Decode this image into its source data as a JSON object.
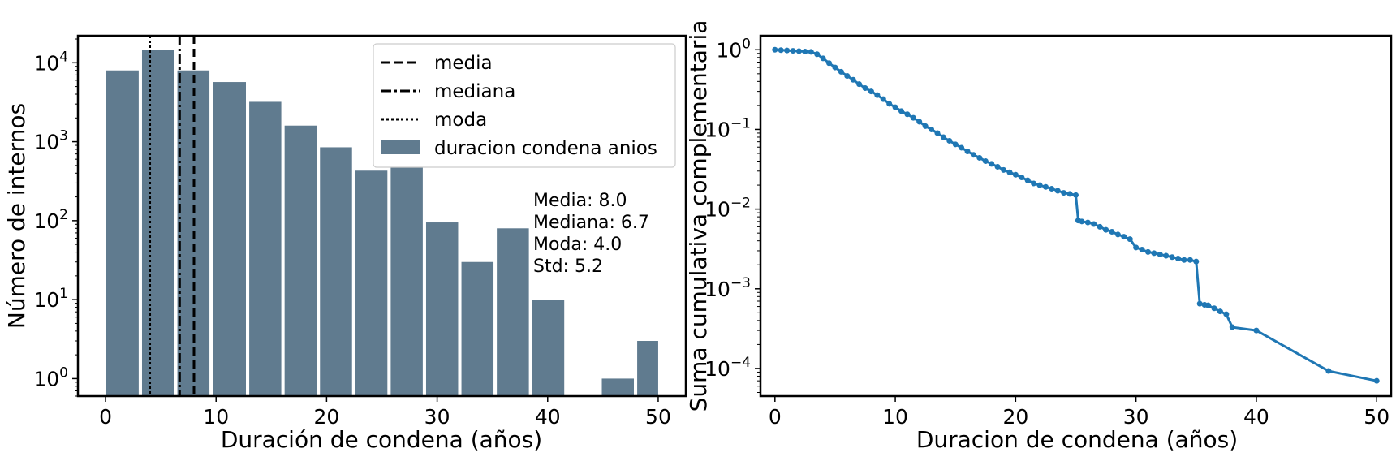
{
  "chart_data": [
    {
      "type": "bar",
      "scale_y": "log",
      "xlabel": "Duración de condena (años)",
      "ylabel": "Número de internos",
      "xlim": [
        -2.5,
        52.5
      ],
      "ylim": [
        0.6,
        22000
      ],
      "xticks": [
        0,
        10,
        20,
        30,
        40,
        50
      ],
      "yticks": [
        {
          "value": 1,
          "base": "10",
          "exp": "0"
        },
        {
          "value": 10,
          "base": "10",
          "exp": "1"
        },
        {
          "value": 100,
          "base": "10",
          "exp": "2"
        },
        {
          "value": 1000,
          "base": "10",
          "exp": "3"
        },
        {
          "value": 10000,
          "base": "10",
          "exp": "4"
        }
      ],
      "bar_color": "#607b8f",
      "bins": [
        {
          "x0": 0,
          "x1": 3.0,
          "value": 8000
        },
        {
          "x0": 3.3,
          "x1": 6.2,
          "value": 14500
        },
        {
          "x0": 6.5,
          "x1": 9.4,
          "value": 8000
        },
        {
          "x0": 9.7,
          "x1": 12.7,
          "value": 5700
        },
        {
          "x0": 13.0,
          "x1": 15.9,
          "value": 3200
        },
        {
          "x0": 16.2,
          "x1": 19.1,
          "value": 1600
        },
        {
          "x0": 19.4,
          "x1": 22.3,
          "value": 850
        },
        {
          "x0": 22.6,
          "x1": 25.5,
          "value": 430
        },
        {
          "x0": 25.8,
          "x1": 28.7,
          "value": 470
        },
        {
          "x0": 29.0,
          "x1": 31.9,
          "value": 95
        },
        {
          "x0": 32.2,
          "x1": 35.1,
          "value": 30
        },
        {
          "x0": 35.4,
          "x1": 38.3,
          "value": 80
        },
        {
          "x0": 38.6,
          "x1": 41.5,
          "value": 10
        },
        {
          "x0": 44.9,
          "x1": 47.8,
          "value": 1
        },
        {
          "x0": 48.1,
          "x1": 50.0,
          "value": 3
        }
      ],
      "vlines": [
        {
          "name": "media",
          "x": 8.0,
          "dash": "10,6"
        },
        {
          "name": "mediana",
          "x": 6.7,
          "dash": "12,4,3,4"
        },
        {
          "name": "moda",
          "x": 4.0,
          "dash": "3,3"
        }
      ],
      "legend": {
        "placement": "upper right",
        "entries": [
          "media",
          "mediana",
          "moda",
          "duracion condena anios"
        ]
      },
      "stats": [
        "Media: 8.0",
        "Mediana: 6.7",
        "Moda: 4.0",
        "Std: 5.2"
      ]
    },
    {
      "type": "line",
      "scale_y": "log",
      "xlabel": "Duracion de condena (años)",
      "ylabel": "Suma cumulativa complementaria",
      "xlim": [
        -1.2,
        51.2
      ],
      "ylim": [
        4.5e-05,
        1.5
      ],
      "xticks": [
        0,
        10,
        20,
        30,
        40,
        50
      ],
      "yticks": [
        {
          "value": 1,
          "base": "10",
          "exp": "0"
        },
        {
          "value": 0.1,
          "base": "10",
          "exp": "−1"
        },
        {
          "value": 0.01,
          "base": "10",
          "exp": "−2"
        },
        {
          "value": 0.001,
          "base": "10",
          "exp": "−3"
        },
        {
          "value": 0.0001,
          "base": "10",
          "exp": "−4"
        }
      ],
      "line_color": "#1f77b4",
      "x": [
        0,
        0.5,
        1,
        1.5,
        2,
        2.5,
        3,
        3.5,
        4,
        4.5,
        5,
        5.5,
        6,
        6.5,
        7,
        7.5,
        8,
        8.5,
        9,
        9.5,
        10,
        10.5,
        11,
        11.5,
        12,
        12.5,
        13,
        13.5,
        14,
        14.5,
        15,
        15.5,
        16,
        16.5,
        17,
        17.5,
        18,
        18.5,
        19,
        19.5,
        20,
        20.5,
        21,
        21.5,
        22,
        22.5,
        23,
        23.5,
        24,
        24.5,
        25,
        25.2,
        25.5,
        26,
        26.5,
        27,
        27.5,
        28,
        28.5,
        29,
        29.5,
        30,
        30.5,
        31,
        31.5,
        32,
        32.5,
        33,
        33.5,
        34,
        34.5,
        35,
        35.3,
        35.7,
        36,
        36.5,
        37,
        37.5,
        38,
        40,
        46,
        50
      ],
      "y": [
        1.0,
        0.99,
        0.98,
        0.97,
        0.96,
        0.95,
        0.94,
        0.88,
        0.78,
        0.68,
        0.6,
        0.53,
        0.47,
        0.42,
        0.37,
        0.33,
        0.3,
        0.27,
        0.24,
        0.21,
        0.19,
        0.17,
        0.155,
        0.14,
        0.125,
        0.11,
        0.1,
        0.09,
        0.08,
        0.072,
        0.065,
        0.059,
        0.053,
        0.048,
        0.044,
        0.04,
        0.037,
        0.034,
        0.031,
        0.029,
        0.027,
        0.025,
        0.023,
        0.021,
        0.02,
        0.019,
        0.018,
        0.017,
        0.016,
        0.0155,
        0.015,
        0.0072,
        0.007,
        0.0068,
        0.0065,
        0.006,
        0.0055,
        0.0052,
        0.0048,
        0.0045,
        0.0042,
        0.0033,
        0.0031,
        0.0029,
        0.0028,
        0.0027,
        0.0026,
        0.0025,
        0.0024,
        0.0023,
        0.0023,
        0.0022,
        0.00065,
        0.00063,
        0.00062,
        0.00057,
        0.00052,
        0.00048,
        0.00033,
        0.0003,
        9.3e-05,
        7e-05
      ]
    }
  ]
}
